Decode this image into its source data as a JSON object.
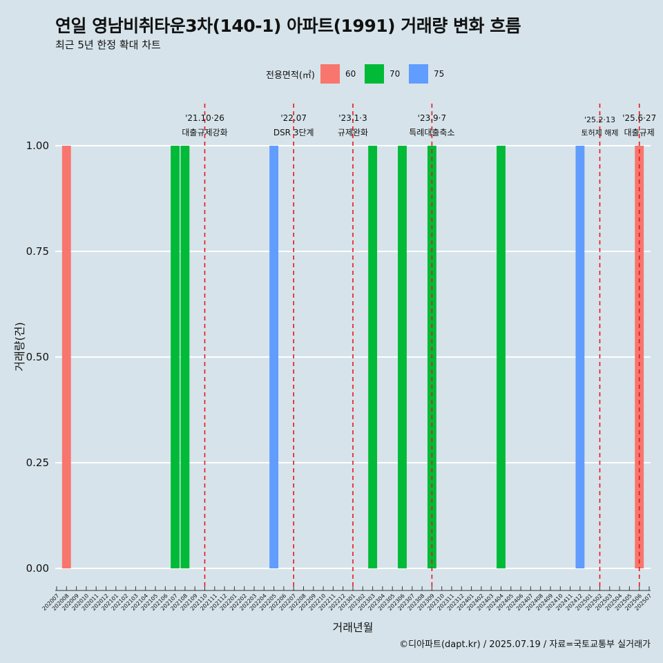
{
  "title": "연일 영남비취타운3차(140-1) 아파트(1991) 거래량 변화 흐름",
  "subtitle": "최근 5년 한정 확대 차트",
  "caption": "©디아파트(dapt.kr) / 2025.07.19 / 자료=국토교통부 실거래가",
  "legend": {
    "title": "전용면적(㎡)",
    "items": [
      {
        "label": "60",
        "color": "#F8766D"
      },
      {
        "label": "70",
        "color": "#00BA38"
      },
      {
        "label": "75",
        "color": "#619CFF"
      }
    ]
  },
  "chart_data": {
    "type": "bar",
    "xlabel": "거래년월",
    "ylabel": "거래량(건)",
    "ylim": [
      0,
      1.0
    ],
    "yticks": [
      "0.00",
      "0.25",
      "0.50",
      "0.75",
      "1.00"
    ],
    "categories": [
      "202007",
      "202008",
      "202009",
      "202010",
      "202011",
      "202012",
      "202101",
      "202102",
      "202103",
      "202104",
      "202105",
      "202106",
      "202107",
      "202108",
      "202109",
      "202110",
      "202111",
      "202112",
      "202201",
      "202202",
      "202203",
      "202204",
      "202205",
      "202206",
      "202207",
      "202208",
      "202209",
      "202210",
      "202211",
      "202212",
      "202301",
      "202302",
      "202303",
      "202304",
      "202305",
      "202306",
      "202307",
      "202308",
      "202309",
      "202310",
      "202311",
      "202312",
      "202401",
      "202402",
      "202403",
      "202404",
      "202405",
      "202406",
      "202407",
      "202408",
      "202409",
      "202410",
      "202411",
      "202412",
      "202501",
      "202502",
      "202503",
      "202504",
      "202505",
      "202506",
      "202507"
    ],
    "series": [
      {
        "name": "60",
        "color": "#F8766D",
        "points": [
          {
            "x": "202008",
            "y": 1
          },
          {
            "x": "202506",
            "y": 1
          }
        ]
      },
      {
        "name": "70",
        "color": "#00BA38",
        "points": [
          {
            "x": "202107",
            "y": 1
          },
          {
            "x": "202108",
            "y": 1
          },
          {
            "x": "202303",
            "y": 1
          },
          {
            "x": "202306",
            "y": 1
          },
          {
            "x": "202309",
            "y": 1
          },
          {
            "x": "202404",
            "y": 1
          }
        ]
      },
      {
        "name": "75",
        "color": "#619CFF",
        "points": [
          {
            "x": "202205",
            "y": 1
          },
          {
            "x": "202412",
            "y": 1
          }
        ]
      }
    ],
    "annotations": [
      {
        "x": "202110",
        "date": "'21.10·26",
        "text": "대출규제강화"
      },
      {
        "x": "202207",
        "date": "'22.07",
        "text": "DSR 3단계"
      },
      {
        "x": "202301",
        "date": "'23.1·3",
        "text": "규제완화"
      },
      {
        "x": "202309",
        "date": "'23.9·7",
        "text": "특례대출축소"
      },
      {
        "x": "202502",
        "date": "'25.2·13",
        "text": "토허제 해제"
      },
      {
        "x": "202506",
        "date": "'25.6·27",
        "text": "대출규제"
      }
    ],
    "grid": true,
    "legend_position": "top"
  }
}
